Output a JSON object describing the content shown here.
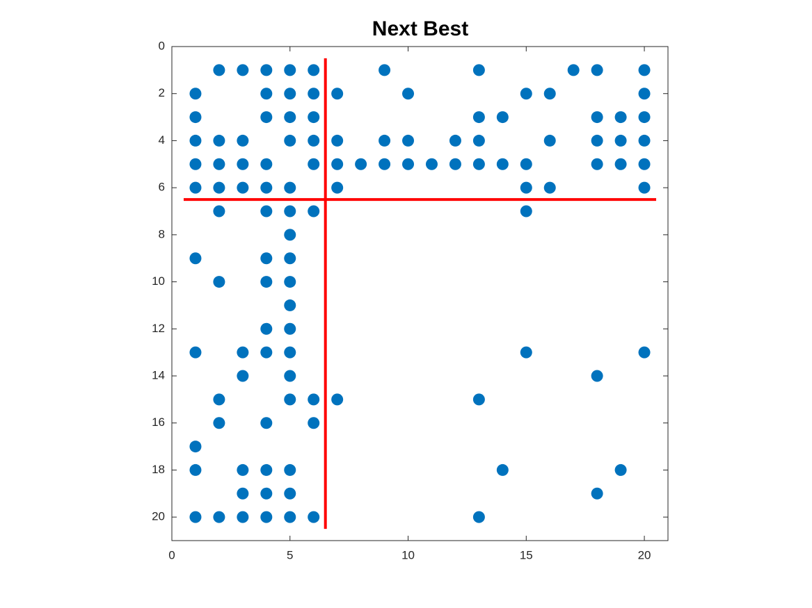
{
  "chart_data": {
    "type": "scatter",
    "title": "Next Best",
    "x": [
      2,
      3,
      4,
      5,
      6,
      9,
      13,
      17,
      18,
      20,
      1,
      4,
      5,
      6,
      7,
      10,
      15,
      16,
      20,
      1,
      4,
      5,
      6,
      13,
      14,
      18,
      19,
      20,
      1,
      2,
      3,
      5,
      6,
      7,
      9,
      10,
      12,
      13,
      16,
      18,
      19,
      20,
      1,
      2,
      3,
      4,
      6,
      7,
      8,
      9,
      10,
      11,
      12,
      13,
      14,
      15,
      18,
      19,
      20,
      1,
      2,
      3,
      4,
      5,
      7,
      15,
      16,
      20,
      2,
      4,
      5,
      6,
      15,
      5,
      1,
      4,
      5,
      2,
      4,
      5,
      5,
      4,
      5,
      1,
      3,
      4,
      5,
      15,
      20,
      3,
      5,
      18,
      2,
      5,
      6,
      7,
      13,
      2,
      4,
      6,
      1,
      1,
      3,
      4,
      5,
      14,
      19,
      3,
      4,
      5,
      18,
      1,
      2,
      3,
      4,
      5,
      6,
      13
    ],
    "y": [
      1,
      1,
      1,
      1,
      1,
      1,
      1,
      1,
      1,
      1,
      2,
      2,
      2,
      2,
      2,
      2,
      2,
      2,
      2,
      3,
      3,
      3,
      3,
      3,
      3,
      3,
      3,
      3,
      4,
      4,
      4,
      4,
      4,
      4,
      4,
      4,
      4,
      4,
      4,
      4,
      4,
      4,
      5,
      5,
      5,
      5,
      5,
      5,
      5,
      5,
      5,
      5,
      5,
      5,
      5,
      5,
      5,
      5,
      5,
      6,
      6,
      6,
      6,
      6,
      6,
      6,
      6,
      6,
      7,
      7,
      7,
      7,
      7,
      8,
      9,
      9,
      9,
      10,
      10,
      10,
      11,
      12,
      12,
      13,
      13,
      13,
      13,
      13,
      13,
      14,
      14,
      14,
      15,
      15,
      15,
      15,
      15,
      16,
      16,
      16,
      17,
      18,
      18,
      18,
      18,
      18,
      18,
      19,
      19,
      19,
      19,
      20,
      20,
      20,
      20,
      20,
      20,
      20
    ],
    "color": "#0072BD",
    "lines": [
      {
        "color": "#FF0000",
        "x": [
          6.5,
          6.5
        ],
        "y": [
          0.5,
          20.5
        ]
      },
      {
        "color": "#FF0000",
        "x": [
          0.5,
          20.5
        ],
        "y": [
          6.5,
          6.5
        ]
      }
    ],
    "xlim": [
      0,
      21
    ],
    "ylim": [
      0,
      21
    ],
    "ydir": "reverse",
    "xticks": [
      0,
      5,
      10,
      15,
      20
    ],
    "yticks": [
      0,
      2,
      4,
      6,
      8,
      10,
      12,
      14,
      16,
      18,
      20
    ],
    "grid": false
  }
}
